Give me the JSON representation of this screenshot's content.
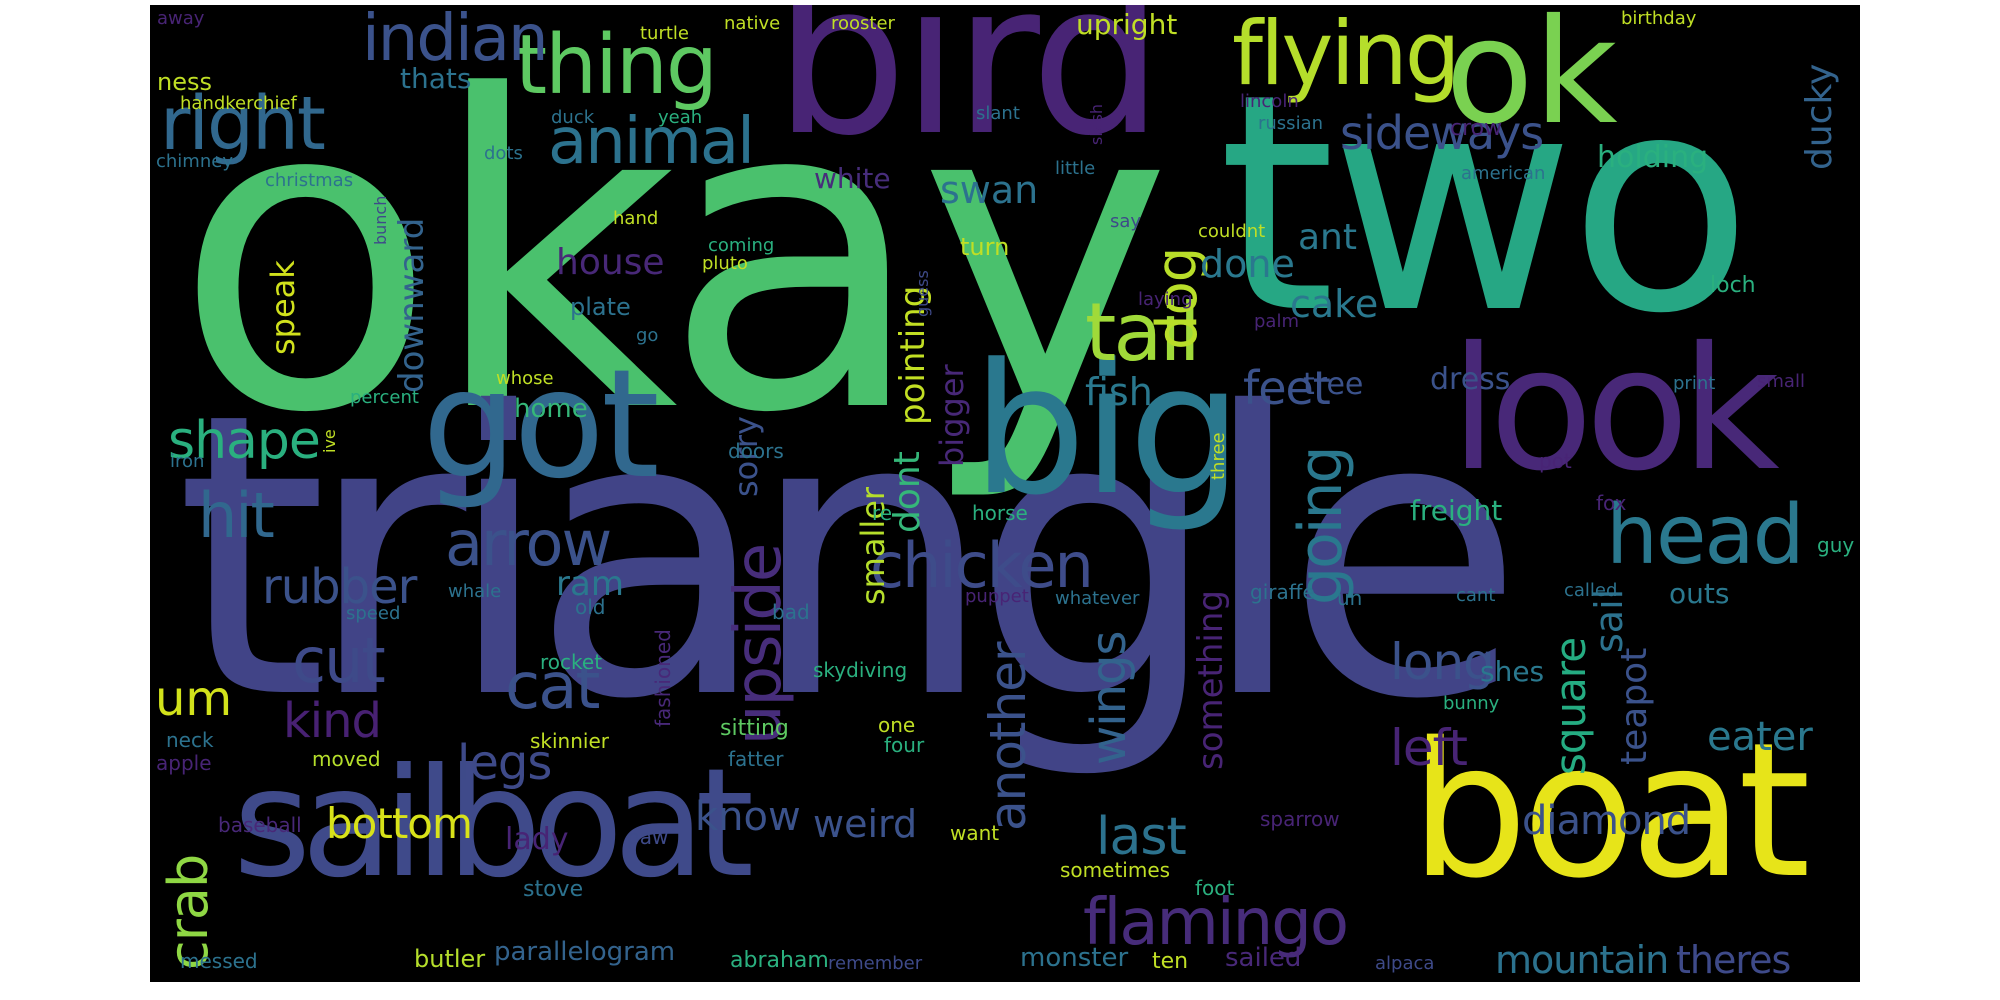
{
  "palette": {
    "dark_purple": "#482475",
    "indigo": "#3b528b",
    "blue": "#31688e",
    "teal": "#21918c",
    "green": "#35b779",
    "light_green": "#5ec962",
    "lime": "#b5de2b",
    "yellow": "#e1e31c"
  },
  "words": [
    {
      "text": "okay",
      "color": "#4ac16d"
    },
    {
      "text": "triangle",
      "color": "#414487"
    },
    {
      "text": "two",
      "color": "#26a784"
    },
    {
      "text": "bird",
      "color": "#482475"
    },
    {
      "text": "sailboat",
      "color": "#3f4a8a"
    },
    {
      "text": "boat",
      "color": "#e7e419"
    },
    {
      "text": "big",
      "color": "#2a788e"
    },
    {
      "text": "look",
      "color": "#482878"
    },
    {
      "text": "got",
      "color": "#31688e"
    },
    {
      "text": "ok",
      "color": "#7ad151"
    },
    {
      "text": "flying",
      "color": "#b5de2b"
    },
    {
      "text": "thing",
      "color": "#5ec962"
    },
    {
      "text": "indian",
      "color": "#3b528b"
    },
    {
      "text": "right",
      "color": "#31688e"
    },
    {
      "text": "animal",
      "color": "#2c728e"
    },
    {
      "text": "tail",
      "color": "#a0da39"
    },
    {
      "text": "head",
      "color": "#2a788e"
    },
    {
      "text": "arrow",
      "color": "#3b528b"
    },
    {
      "text": "chicken",
      "color": "#3e4c8a"
    },
    {
      "text": "upside",
      "color": "#472d7b"
    },
    {
      "text": "flamingo",
      "color": "#472c7a"
    },
    {
      "text": "cat",
      "color": "#3b528b"
    },
    {
      "text": "cut",
      "color": "#3e4a89"
    },
    {
      "text": "going",
      "color": "#2a788e"
    },
    {
      "text": "dog",
      "color": "#b8de29"
    },
    {
      "text": "sideways",
      "color": "#3b528b"
    },
    {
      "text": "hit",
      "color": "#31688e"
    },
    {
      "text": "shape",
      "color": "#2ab07f"
    },
    {
      "text": "rubber",
      "color": "#3b528b"
    },
    {
      "text": "kind",
      "color": "#482173"
    },
    {
      "text": "um",
      "color": "#d2e21b"
    },
    {
      "text": "crab",
      "color": "#8fd744"
    },
    {
      "text": "legs",
      "color": "#3e4a89"
    },
    {
      "text": "bottom",
      "color": "#d8e219"
    },
    {
      "text": "know",
      "color": "#3b528b"
    },
    {
      "text": "weird",
      "color": "#3b528b"
    },
    {
      "text": "last",
      "color": "#2c728e"
    },
    {
      "text": "wings",
      "color": "#33638d"
    },
    {
      "text": "another",
      "color": "#3b528b"
    },
    {
      "text": "long",
      "color": "#3b528b"
    },
    {
      "text": "left",
      "color": "#482475"
    },
    {
      "text": "square",
      "color": "#25ac82"
    },
    {
      "text": "teapot",
      "color": "#3b528b"
    },
    {
      "text": "eater",
      "color": "#2a788e"
    },
    {
      "text": "diamond",
      "color": "#3b528b"
    },
    {
      "text": "mountain",
      "color": "#2c728e"
    },
    {
      "text": "theres",
      "color": "#3e4a89"
    },
    {
      "text": "sail",
      "color": "#2c728e"
    },
    {
      "text": "shes",
      "color": "#2a788e"
    },
    {
      "text": "outs",
      "color": "#2a788e"
    },
    {
      "text": "freight",
      "color": "#2ab07f"
    },
    {
      "text": "dress",
      "color": "#3b528b"
    },
    {
      "text": "tree",
      "color": "#3b528b"
    },
    {
      "text": "feet",
      "color": "#3b528b"
    },
    {
      "text": "ant",
      "color": "#2a788e"
    },
    {
      "text": "done",
      "color": "#2a788e"
    },
    {
      "text": "cake",
      "color": "#2a788e"
    },
    {
      "text": "something",
      "color": "#482475"
    },
    {
      "text": "fish",
      "color": "#2a788e"
    },
    {
      "text": "pointing",
      "color": "#c2df23"
    },
    {
      "text": "dont",
      "color": "#35b779"
    },
    {
      "text": "bigger",
      "color": "#482878"
    },
    {
      "text": "smaller",
      "color": "#b5de2b"
    },
    {
      "text": "sorry",
      "color": "#3b528b"
    },
    {
      "text": "house",
      "color": "#482878"
    },
    {
      "text": "ram",
      "color": "#2a788e"
    },
    {
      "text": "speak",
      "color": "#d0e11c"
    },
    {
      "text": "downward",
      "color": "#33638d"
    },
    {
      "text": "swan",
      "color": "#2c728e"
    },
    {
      "text": "white",
      "color": "#472d7b"
    },
    {
      "text": "turn",
      "color": "#c0df25"
    },
    {
      "text": "ducky",
      "color": "#33638d"
    },
    {
      "text": "holding",
      "color": "#2ab07f"
    },
    {
      "text": "crow",
      "color": "#482475"
    },
    {
      "text": "upright",
      "color": "#c0df25"
    },
    {
      "text": "thats",
      "color": "#2c728e"
    },
    {
      "text": "ness",
      "color": "#c0df25"
    },
    {
      "text": "plate",
      "color": "#2c728e"
    },
    {
      "text": "home",
      "color": "#35b779"
    },
    {
      "text": "lady",
      "color": "#482475"
    },
    {
      "text": "parallelogram",
      "color": "#33638d"
    },
    {
      "text": "butler",
      "color": "#b5de2b"
    },
    {
      "text": "messed",
      "color": "#2c728e"
    },
    {
      "text": "abraham",
      "color": "#2ab07f"
    },
    {
      "text": "remember",
      "color": "#3e4a89"
    },
    {
      "text": "monster",
      "color": "#2c728e"
    },
    {
      "text": "ten",
      "color": "#c0df25"
    },
    {
      "text": "sailed",
      "color": "#482878"
    },
    {
      "text": "alpaca",
      "color": "#3e4a89"
    },
    {
      "text": "sometimes",
      "color": "#c0df25"
    },
    {
      "text": "foot",
      "color": "#2ab07f"
    },
    {
      "text": "stove",
      "color": "#2c728e"
    },
    {
      "text": "paw",
      "color": "#3e4a89"
    },
    {
      "text": "want",
      "color": "#c0df25"
    },
    {
      "text": "sparrow",
      "color": "#482475"
    },
    {
      "text": "baseball",
      "color": "#482878"
    },
    {
      "text": "apple",
      "color": "#482475"
    },
    {
      "text": "neck",
      "color": "#2c728e"
    },
    {
      "text": "moved",
      "color": "#b5de2b"
    },
    {
      "text": "skinnier",
      "color": "#c0df25"
    },
    {
      "text": "fatter",
      "color": "#2c728e"
    },
    {
      "text": "sitting",
      "color": "#5ec962"
    },
    {
      "text": "one",
      "color": "#c0df25"
    },
    {
      "text": "four",
      "color": "#2ab07f"
    },
    {
      "text": "skydiving",
      "color": "#2ab07f"
    },
    {
      "text": "rocket",
      "color": "#2ab07f"
    },
    {
      "text": "fashioned",
      "color": "#482878"
    },
    {
      "text": "bad",
      "color": "#2c728e"
    },
    {
      "text": "old",
      "color": "#2c728e"
    },
    {
      "text": "speed",
      "color": "#2c728e"
    },
    {
      "text": "whale",
      "color": "#2c728e"
    },
    {
      "text": "puppet",
      "color": "#482475"
    },
    {
      "text": "whatever",
      "color": "#2c728e"
    },
    {
      "text": "giraffe",
      "color": "#2c728e"
    },
    {
      "text": "uh",
      "color": "#2c728e"
    },
    {
      "text": "cant",
      "color": "#2c728e"
    },
    {
      "text": "called",
      "color": "#2c728e"
    },
    {
      "text": "guy",
      "color": "#2ab07f"
    },
    {
      "text": "fox",
      "color": "#482475"
    },
    {
      "text": "bunny",
      "color": "#2ab07f"
    },
    {
      "text": "horse",
      "color": "#2ab07f"
    },
    {
      "text": "re",
      "color": "#2ab07f"
    },
    {
      "text": "doors",
      "color": "#2c728e"
    },
    {
      "text": "three",
      "color": "#c0df25"
    },
    {
      "text": "pot",
      "color": "#482475"
    },
    {
      "text": "print",
      "color": "#2c728e"
    },
    {
      "text": "small",
      "color": "#482475"
    },
    {
      "text": "palm",
      "color": "#482475"
    },
    {
      "text": "laying",
      "color": "#482475"
    },
    {
      "text": "loch",
      "color": "#2ab07f"
    },
    {
      "text": "couldnt",
      "color": "#c0df25"
    },
    {
      "text": "say",
      "color": "#3e4a89"
    },
    {
      "text": "guess",
      "color": "#3e4a89"
    },
    {
      "text": "pluto",
      "color": "#c0df25"
    },
    {
      "text": "coming",
      "color": "#2ab07f"
    },
    {
      "text": "go",
      "color": "#2c728e"
    },
    {
      "text": "whose",
      "color": "#c0df25"
    },
    {
      "text": "percent",
      "color": "#2ab07f"
    },
    {
      "text": "ive",
      "color": "#c0df25"
    },
    {
      "text": "iron",
      "color": "#2c728e"
    },
    {
      "text": "hand",
      "color": "#c0df25"
    },
    {
      "text": "bunch",
      "color": "#3e4a89"
    },
    {
      "text": "chimney",
      "color": "#2c728e"
    },
    {
      "text": "christmas",
      "color": "#2c728e"
    },
    {
      "text": "dots",
      "color": "#2c728e"
    },
    {
      "text": "duck",
      "color": "#2c728e"
    },
    {
      "text": "yeah",
      "color": "#2ab07f"
    },
    {
      "text": "slant",
      "color": "#2c728e"
    },
    {
      "text": "slash",
      "color": "#482475"
    },
    {
      "text": "little",
      "color": "#2c728e"
    },
    {
      "text": "lincoln",
      "color": "#482475"
    },
    {
      "text": "russian",
      "color": "#2c728e"
    },
    {
      "text": "american",
      "color": "#2c728e"
    },
    {
      "text": "handkerchief",
      "color": "#c0df25"
    },
    {
      "text": "turtle",
      "color": "#c0df25"
    },
    {
      "text": "native",
      "color": "#c0df25"
    },
    {
      "text": "rooster",
      "color": "#c0df25"
    },
    {
      "text": "away",
      "color": "#482475"
    },
    {
      "text": "birthday",
      "color": "#c0df25"
    }
  ]
}
